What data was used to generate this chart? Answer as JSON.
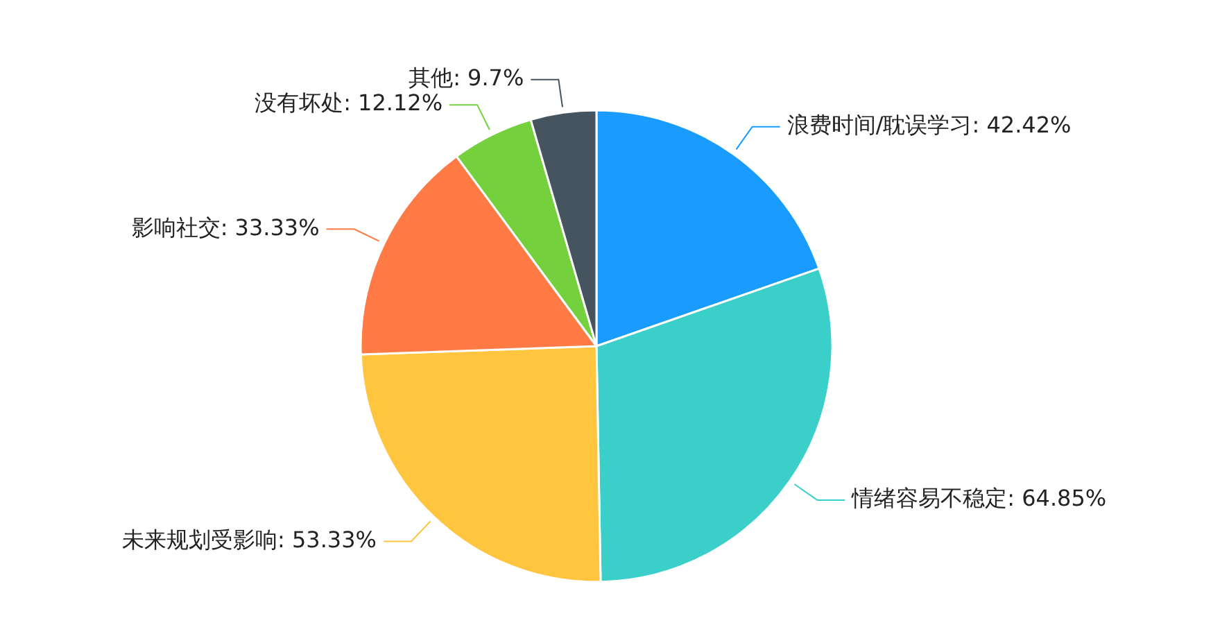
{
  "chart_data": {
    "type": "pie",
    "categories": [
      "浪费时间/耽误学习",
      "情绪容易不稳定",
      "未来规划受影响",
      "影响社交",
      "没有坏处",
      "其他"
    ],
    "values": [
      42.42,
      64.85,
      53.33,
      33.33,
      12.12,
      9.7
    ],
    "value_labels": [
      "42.42%",
      "64.85%",
      "53.33%",
      "33.33%",
      "12.12%",
      "9.7%"
    ],
    "colors": [
      "#1a9bff",
      "#3bcfc9",
      "#ffc53f",
      "#ff7a45",
      "#74d13d",
      "#45545f"
    ],
    "legend": false
  }
}
